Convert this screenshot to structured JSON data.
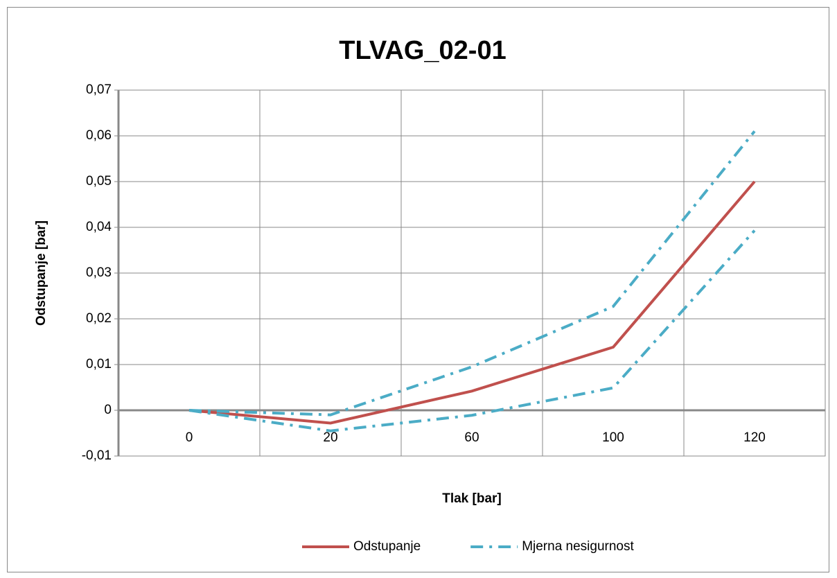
{
  "chart_data": {
    "type": "line",
    "title": "TLVAG_02-01",
    "x_label": "Tlak [bar]",
    "y_label": "Odstupanje [bar]",
    "categories": [
      "0",
      "20",
      "60",
      "100",
      "120"
    ],
    "series": [
      {
        "name": "Odstupanje",
        "color": "#c0504d",
        "dash": false,
        "values": [
          0,
          -0.0028,
          0.0042,
          0.0138,
          0.05
        ]
      },
      {
        "name": "Mjerna nesigurnost",
        "color": "#4bacc6",
        "dash": true,
        "values": [
          0,
          -0.001,
          0.0095,
          0.0227,
          0.061
        ]
      },
      {
        "name": "Mjerna nesigurnost",
        "color": "#4bacc6",
        "dash": true,
        "values": [
          0,
          -0.0045,
          -0.0011,
          0.0049,
          0.0393
        ]
      }
    ],
    "ylim": [
      -0.01,
      0.07
    ],
    "yticks": [
      {
        "value": -0.01,
        "label": "-0,01"
      },
      0,
      {
        "value": 0.01,
        "label": "0,01"
      },
      {
        "value": 0.02,
        "label": "0,02"
      },
      {
        "value": 0.03,
        "label": "0,03"
      },
      {
        "value": 0.04,
        "label": "0,04"
      },
      {
        "value": 0.05,
        "label": "0,05"
      },
      {
        "value": 0.06,
        "label": "0,06"
      },
      {
        "value": 0.07,
        "label": "0,07"
      }
    ],
    "grid": true,
    "legend": "bottom"
  }
}
